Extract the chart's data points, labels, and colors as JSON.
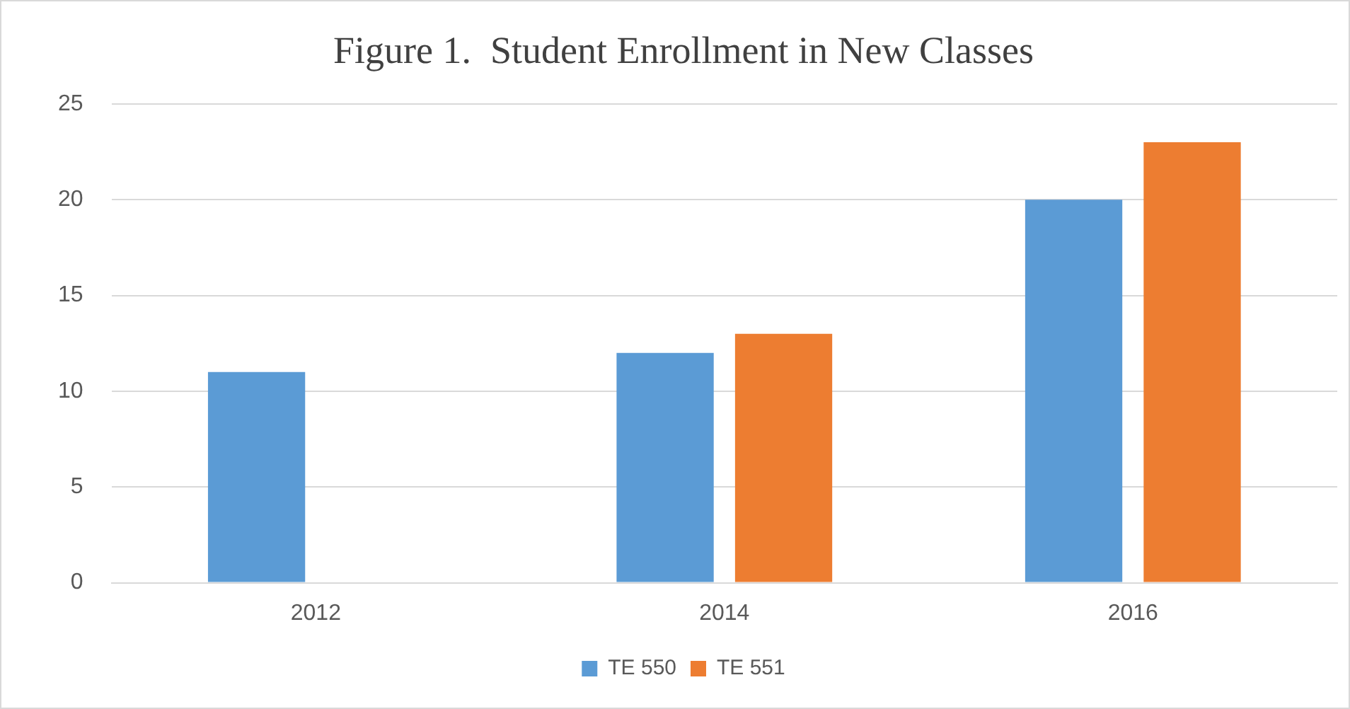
{
  "chart_data": {
    "type": "bar",
    "title": "Figure 1.  Student Enrollment in New Classes",
    "categories": [
      "2012",
      "2014",
      "2016"
    ],
    "series": [
      {
        "name": "TE 550",
        "color": "#5b9bd5",
        "values": [
          11,
          12,
          20
        ]
      },
      {
        "name": "TE 551",
        "color": "#ed7d31",
        "values": [
          null,
          13,
          23
        ]
      }
    ],
    "ylim": [
      0,
      25
    ],
    "yticks": [
      0,
      5,
      10,
      15,
      20,
      25
    ],
    "grid": "y",
    "legend": "bottom"
  }
}
